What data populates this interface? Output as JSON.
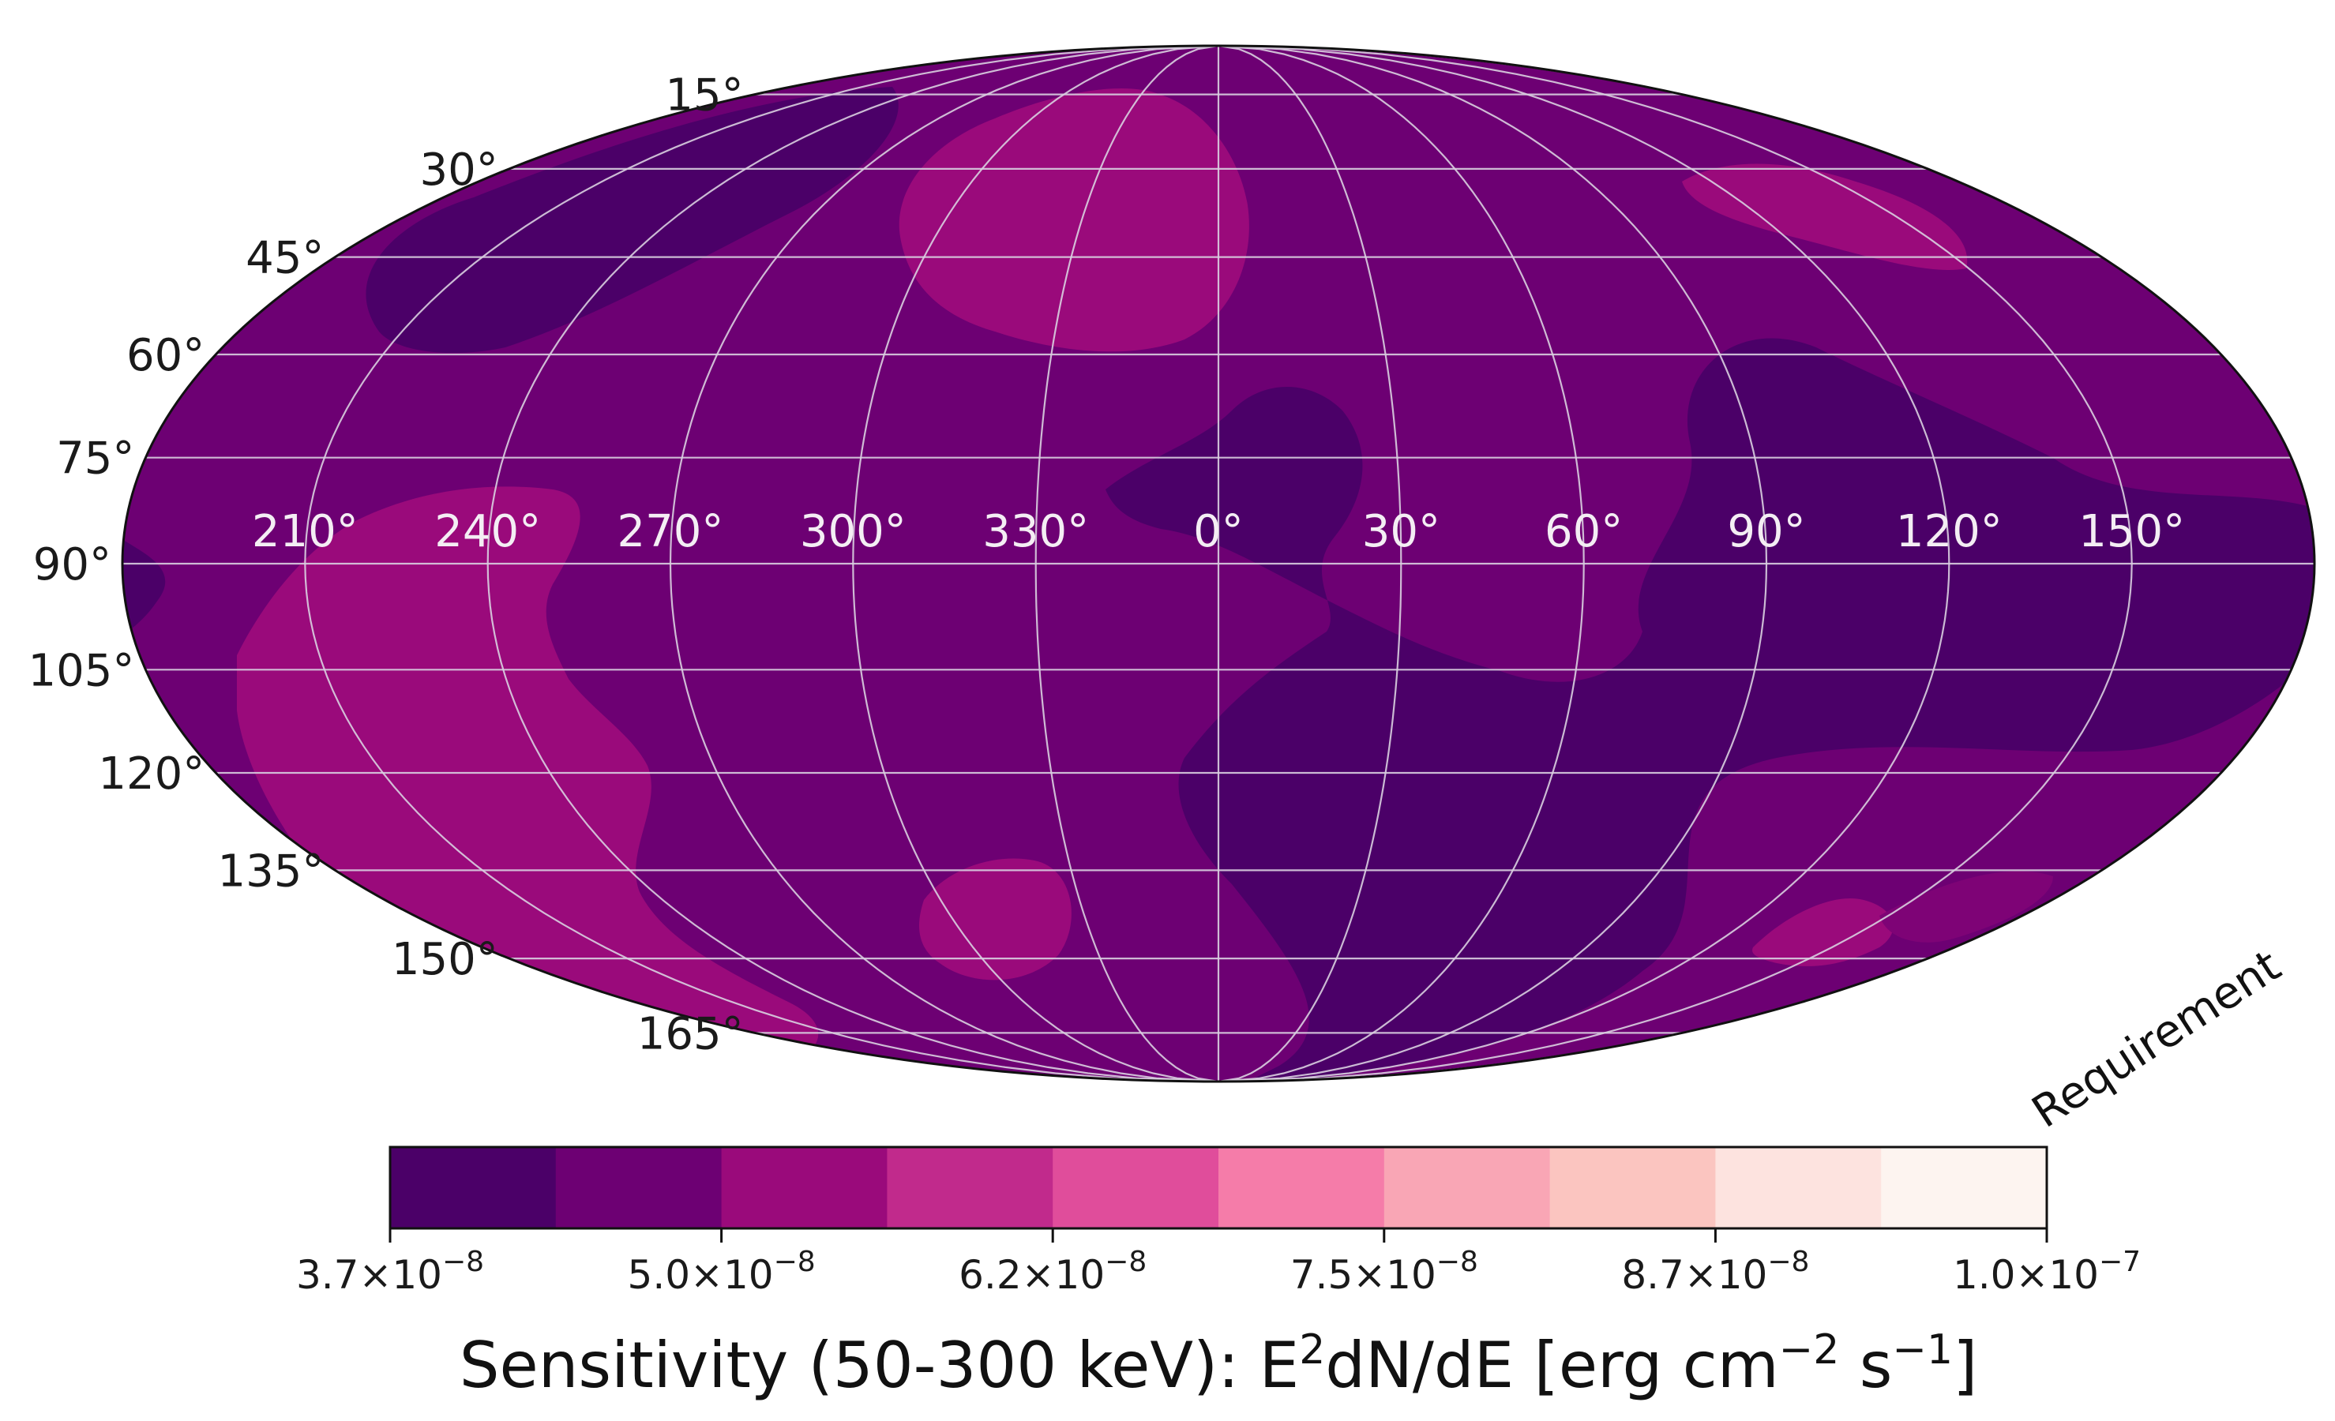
{
  "chart_data": {
    "type": "heatmap",
    "projection": "mollweide",
    "lon_ticks": [
      "210°",
      "240°",
      "270°",
      "300°",
      "330°",
      "0°",
      "30°",
      "60°",
      "90°",
      "120°",
      "150°"
    ],
    "lat_ticks": [
      "15°",
      "30°",
      "45°",
      "60°",
      "75°",
      "90°",
      "105°",
      "120°",
      "135°",
      "150°",
      "165°"
    ],
    "grid": true,
    "colorbar": {
      "levels": 10,
      "colors": [
        "#4b0068",
        "#6d0073",
        "#9a0a7b",
        "#c12a8c",
        "#e04d9b",
        "#f57ca9",
        "#f9a6b5",
        "#fbc5c0",
        "#fde3df",
        "#fdf4f0"
      ],
      "tick_labels": [
        {
          "mant": "3.7",
          "exp": "−8"
        },
        {
          "mant": "5.0",
          "exp": "−8"
        },
        {
          "mant": "6.2",
          "exp": "−8"
        },
        {
          "mant": "7.5",
          "exp": "−8"
        },
        {
          "mant": "8.7",
          "exp": "−8"
        },
        {
          "mant": "1.0",
          "exp": "−7"
        }
      ],
      "title_main": "Sensitivity (50-300 keV): E",
      "title_sup1": "2",
      "title_mid": "dN/dE [erg cm",
      "title_sup2": "−2",
      "title_mid2": " s",
      "title_sup3": "−1",
      "title_end": "]",
      "annotation": "Requirement"
    },
    "sky_map_levels_observed": [
      1,
      2,
      3
    ],
    "background_color": "#6d0073"
  }
}
